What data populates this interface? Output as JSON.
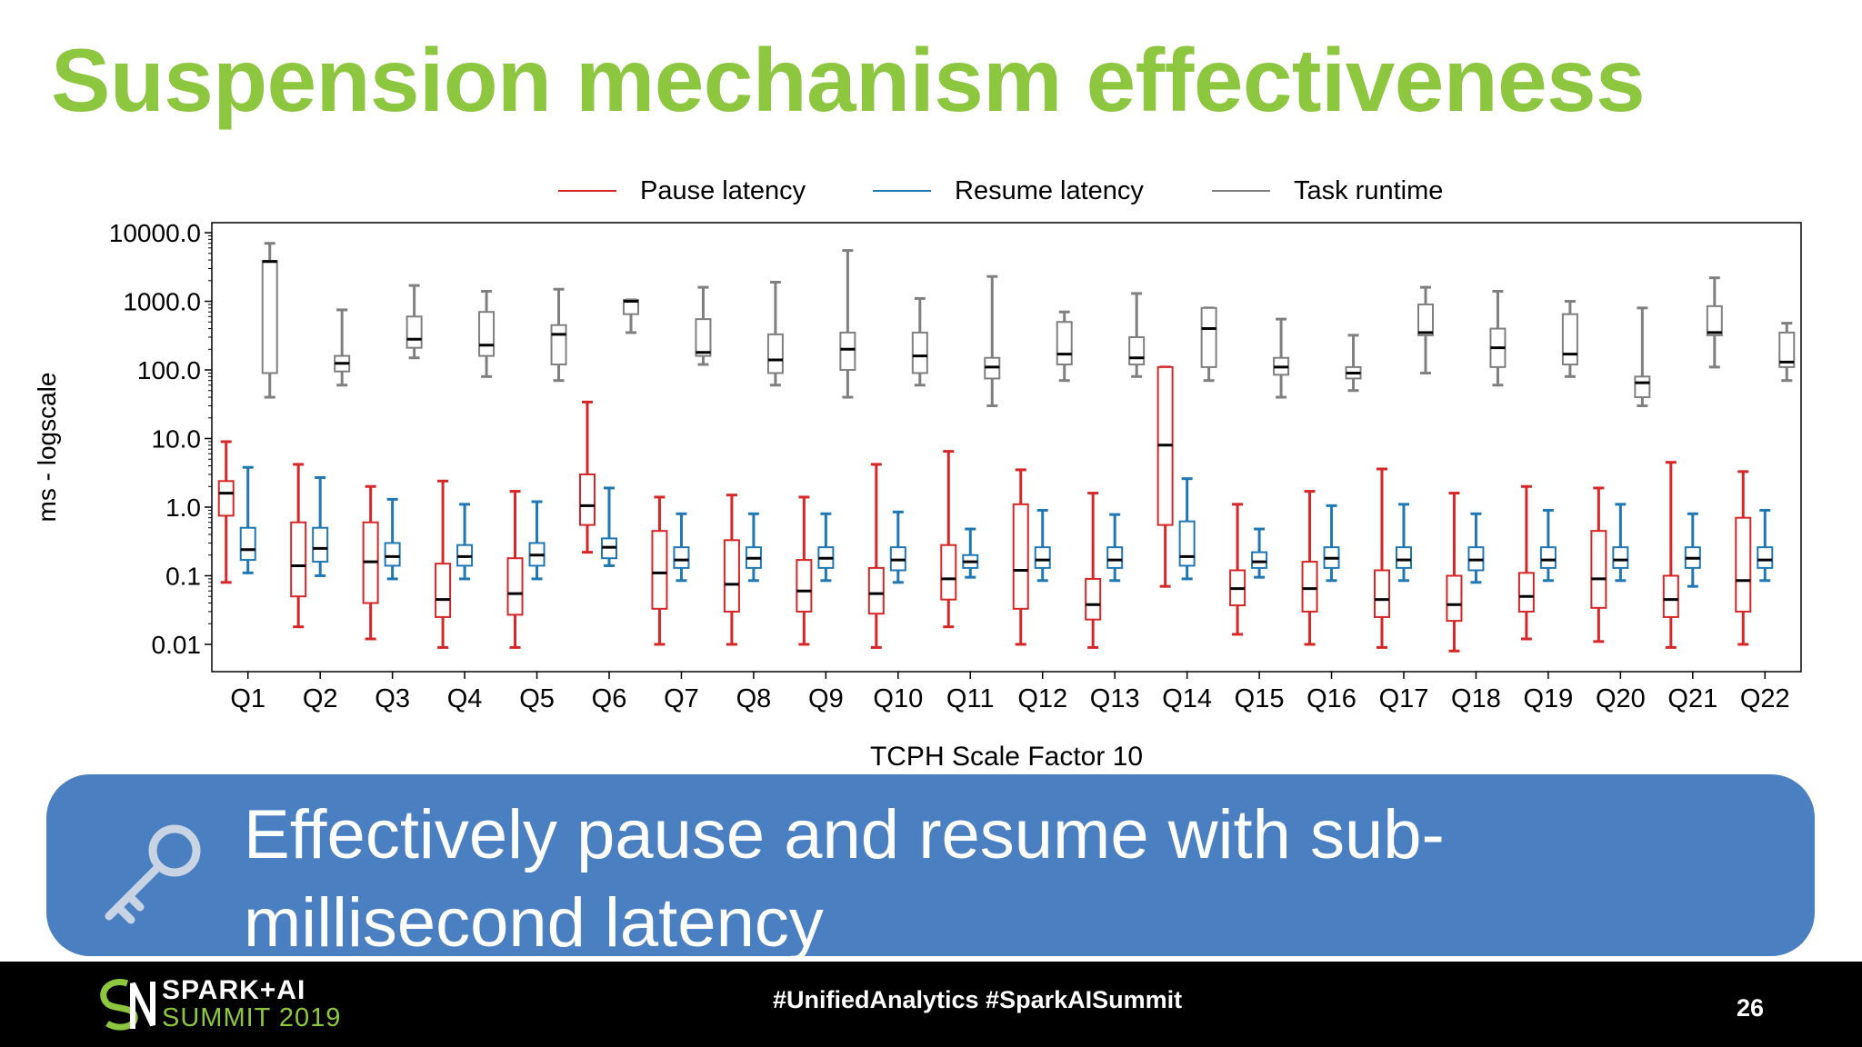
{
  "slide": {
    "title": "Suspension mechanism effectiveness",
    "callout_text": "Effectively pause and resume with sub-millisecond latency",
    "callout_icon": "key-icon",
    "footer": {
      "logo_line1": "SPARK+AI",
      "logo_line2": "SUMMIT 2019",
      "hashtags": "#UnifiedAnalytics #SparkAISummit",
      "page_number": "26"
    },
    "colors": {
      "title": "#8dc63f",
      "callout_bg": "#4a7fc2",
      "footer_bg": "#000000"
    }
  },
  "chart_data": {
    "type": "boxplot",
    "xlabel": "TCPH Scale Factor 10",
    "ylabel": "ms - logscale",
    "yscale": "log",
    "ylim": [
      0.004,
      14000
    ],
    "ytick_labels": [
      "0.01",
      "0.1",
      "1.0",
      "10.0",
      "100.0",
      "1000.0",
      "10000.0"
    ],
    "ytick_values": [
      0.01,
      0.1,
      1,
      10,
      100,
      1000,
      10000
    ],
    "legend_position": "top",
    "categories": [
      "Q1",
      "Q2",
      "Q3",
      "Q4",
      "Q5",
      "Q6",
      "Q7",
      "Q8",
      "Q9",
      "Q10",
      "Q11",
      "Q12",
      "Q13",
      "Q14",
      "Q15",
      "Q16",
      "Q17",
      "Q18",
      "Q19",
      "Q20",
      "Q21",
      "Q22"
    ],
    "series": [
      {
        "name": "Pause latency",
        "color": "#d62728",
        "stats": [
          {
            "whislo": 0.08,
            "q1": 0.75,
            "med": 1.6,
            "q3": 2.4,
            "whishi": 9
          },
          {
            "whislo": 0.018,
            "q1": 0.05,
            "med": 0.14,
            "q3": 0.6,
            "whishi": 4.2
          },
          {
            "whislo": 0.012,
            "q1": 0.04,
            "med": 0.16,
            "q3": 0.6,
            "whishi": 2
          },
          {
            "whislo": 0.009,
            "q1": 0.025,
            "med": 0.045,
            "q3": 0.15,
            "whishi": 2.4
          },
          {
            "whislo": 0.009,
            "q1": 0.027,
            "med": 0.055,
            "q3": 0.18,
            "whishi": 1.7
          },
          {
            "whislo": 0.22,
            "q1": 0.55,
            "med": 1.05,
            "q3": 3,
            "whishi": 34
          },
          {
            "whislo": 0.01,
            "q1": 0.033,
            "med": 0.11,
            "q3": 0.45,
            "whishi": 1.4
          },
          {
            "whislo": 0.01,
            "q1": 0.03,
            "med": 0.075,
            "q3": 0.33,
            "whishi": 1.5
          },
          {
            "whislo": 0.01,
            "q1": 0.03,
            "med": 0.06,
            "q3": 0.17,
            "whishi": 1.4
          },
          {
            "whislo": 0.009,
            "q1": 0.028,
            "med": 0.055,
            "q3": 0.13,
            "whishi": 4.2
          },
          {
            "whislo": 0.018,
            "q1": 0.045,
            "med": 0.09,
            "q3": 0.28,
            "whishi": 6.5
          },
          {
            "whislo": 0.01,
            "q1": 0.033,
            "med": 0.12,
            "q3": 1.1,
            "whishi": 3.5
          },
          {
            "whislo": 0.009,
            "q1": 0.023,
            "med": 0.038,
            "q3": 0.09,
            "whishi": 1.6
          },
          {
            "whislo": 0.07,
            "q1": 0.55,
            "med": 8,
            "q3": 110,
            "whishi": 110
          },
          {
            "whislo": 0.014,
            "q1": 0.037,
            "med": 0.065,
            "q3": 0.12,
            "whishi": 1.1
          },
          {
            "whislo": 0.01,
            "q1": 0.03,
            "med": 0.065,
            "q3": 0.16,
            "whishi": 1.7
          },
          {
            "whislo": 0.009,
            "q1": 0.025,
            "med": 0.045,
            "q3": 0.12,
            "whishi": 3.6
          },
          {
            "whislo": 0.008,
            "q1": 0.022,
            "med": 0.038,
            "q3": 0.1,
            "whishi": 1.6
          },
          {
            "whislo": 0.012,
            "q1": 0.03,
            "med": 0.05,
            "q3": 0.11,
            "whishi": 2
          },
          {
            "whislo": 0.011,
            "q1": 0.034,
            "med": 0.09,
            "q3": 0.45,
            "whishi": 1.9
          },
          {
            "whislo": 0.009,
            "q1": 0.025,
            "med": 0.045,
            "q3": 0.1,
            "whishi": 4.5
          },
          {
            "whislo": 0.01,
            "q1": 0.03,
            "med": 0.085,
            "q3": 0.7,
            "whishi": 3.3
          }
        ]
      },
      {
        "name": "Resume latency",
        "color": "#1f77b4",
        "stats": [
          {
            "whislo": 0.11,
            "q1": 0.17,
            "med": 0.24,
            "q3": 0.5,
            "whishi": 3.8
          },
          {
            "whislo": 0.1,
            "q1": 0.16,
            "med": 0.25,
            "q3": 0.5,
            "whishi": 2.7
          },
          {
            "whislo": 0.09,
            "q1": 0.14,
            "med": 0.19,
            "q3": 0.3,
            "whishi": 1.3
          },
          {
            "whislo": 0.09,
            "q1": 0.14,
            "med": 0.19,
            "q3": 0.28,
            "whishi": 1.1
          },
          {
            "whislo": 0.09,
            "q1": 0.14,
            "med": 0.2,
            "q3": 0.3,
            "whishi": 1.2
          },
          {
            "whislo": 0.14,
            "q1": 0.18,
            "med": 0.26,
            "q3": 0.35,
            "whishi": 1.9
          },
          {
            "whislo": 0.085,
            "q1": 0.13,
            "med": 0.17,
            "q3": 0.26,
            "whishi": 0.8
          },
          {
            "whislo": 0.085,
            "q1": 0.13,
            "med": 0.18,
            "q3": 0.26,
            "whishi": 0.8
          },
          {
            "whislo": 0.085,
            "q1": 0.13,
            "med": 0.18,
            "q3": 0.26,
            "whishi": 0.8
          },
          {
            "whislo": 0.08,
            "q1": 0.12,
            "med": 0.17,
            "q3": 0.26,
            "whishi": 0.85
          },
          {
            "whislo": 0.095,
            "q1": 0.13,
            "med": 0.16,
            "q3": 0.2,
            "whishi": 0.48
          },
          {
            "whislo": 0.085,
            "q1": 0.13,
            "med": 0.17,
            "q3": 0.26,
            "whishi": 0.9
          },
          {
            "whislo": 0.085,
            "q1": 0.13,
            "med": 0.17,
            "q3": 0.26,
            "whishi": 0.78
          },
          {
            "whislo": 0.09,
            "q1": 0.14,
            "med": 0.19,
            "q3": 0.62,
            "whishi": 2.6
          },
          {
            "whislo": 0.095,
            "q1": 0.13,
            "med": 0.16,
            "q3": 0.22,
            "whishi": 0.48
          },
          {
            "whislo": 0.085,
            "q1": 0.13,
            "med": 0.18,
            "q3": 0.26,
            "whishi": 1.05
          },
          {
            "whislo": 0.085,
            "q1": 0.13,
            "med": 0.17,
            "q3": 0.26,
            "whishi": 1.1
          },
          {
            "whislo": 0.08,
            "q1": 0.12,
            "med": 0.17,
            "q3": 0.26,
            "whishi": 0.8
          },
          {
            "whislo": 0.085,
            "q1": 0.13,
            "med": 0.17,
            "q3": 0.26,
            "whishi": 0.9
          },
          {
            "whislo": 0.085,
            "q1": 0.13,
            "med": 0.17,
            "q3": 0.26,
            "whishi": 1.1
          },
          {
            "whislo": 0.07,
            "q1": 0.13,
            "med": 0.18,
            "q3": 0.26,
            "whishi": 0.8
          },
          {
            "whislo": 0.085,
            "q1": 0.13,
            "med": 0.17,
            "q3": 0.26,
            "whishi": 0.9
          }
        ]
      },
      {
        "name": "Task runtime",
        "color": "#7f7f7f",
        "stats": [
          {
            "whislo": 40,
            "q1": 90,
            "med": 3800,
            "q3": 3900,
            "whishi": 7000
          },
          {
            "whislo": 60,
            "q1": 95,
            "med": 125,
            "q3": 160,
            "whishi": 750
          },
          {
            "whislo": 150,
            "q1": 210,
            "med": 280,
            "q3": 600,
            "whishi": 1700
          },
          {
            "whislo": 80,
            "q1": 160,
            "med": 230,
            "q3": 700,
            "whishi": 1400
          },
          {
            "whislo": 70,
            "q1": 120,
            "med": 330,
            "q3": 450,
            "whishi": 1500
          },
          {
            "whislo": 350,
            "q1": 650,
            "med": 1000,
            "q3": 1050,
            "whishi": 1050
          },
          {
            "whislo": 120,
            "q1": 160,
            "med": 180,
            "q3": 550,
            "whishi": 1600
          },
          {
            "whislo": 60,
            "q1": 90,
            "med": 140,
            "q3": 330,
            "whishi": 1900
          },
          {
            "whislo": 40,
            "q1": 100,
            "med": 200,
            "q3": 350,
            "whishi": 5500
          },
          {
            "whislo": 60,
            "q1": 90,
            "med": 160,
            "q3": 350,
            "whishi": 1100
          },
          {
            "whislo": 30,
            "q1": 75,
            "med": 110,
            "q3": 150,
            "whishi": 2300
          },
          {
            "whislo": 70,
            "q1": 120,
            "med": 170,
            "q3": 500,
            "whishi": 700
          },
          {
            "whislo": 80,
            "q1": 120,
            "med": 150,
            "q3": 300,
            "whishi": 1300
          },
          {
            "whislo": 70,
            "q1": 110,
            "med": 400,
            "q3": 800,
            "whishi": 800
          },
          {
            "whislo": 40,
            "q1": 85,
            "med": 110,
            "q3": 150,
            "whishi": 550
          },
          {
            "whislo": 50,
            "q1": 75,
            "med": 90,
            "q3": 110,
            "whishi": 320
          },
          {
            "whislo": 90,
            "q1": 320,
            "med": 350,
            "q3": 900,
            "whishi": 1600
          },
          {
            "whislo": 60,
            "q1": 110,
            "med": 210,
            "q3": 400,
            "whishi": 1400
          },
          {
            "whislo": 80,
            "q1": 120,
            "med": 170,
            "q3": 650,
            "whishi": 1000
          },
          {
            "whislo": 30,
            "q1": 40,
            "med": 65,
            "q3": 80,
            "whishi": 800
          },
          {
            "whislo": 110,
            "q1": 320,
            "med": 350,
            "q3": 850,
            "whishi": 2200
          },
          {
            "whislo": 70,
            "q1": 110,
            "med": 130,
            "q3": 350,
            "whishi": 480
          }
        ]
      }
    ]
  }
}
